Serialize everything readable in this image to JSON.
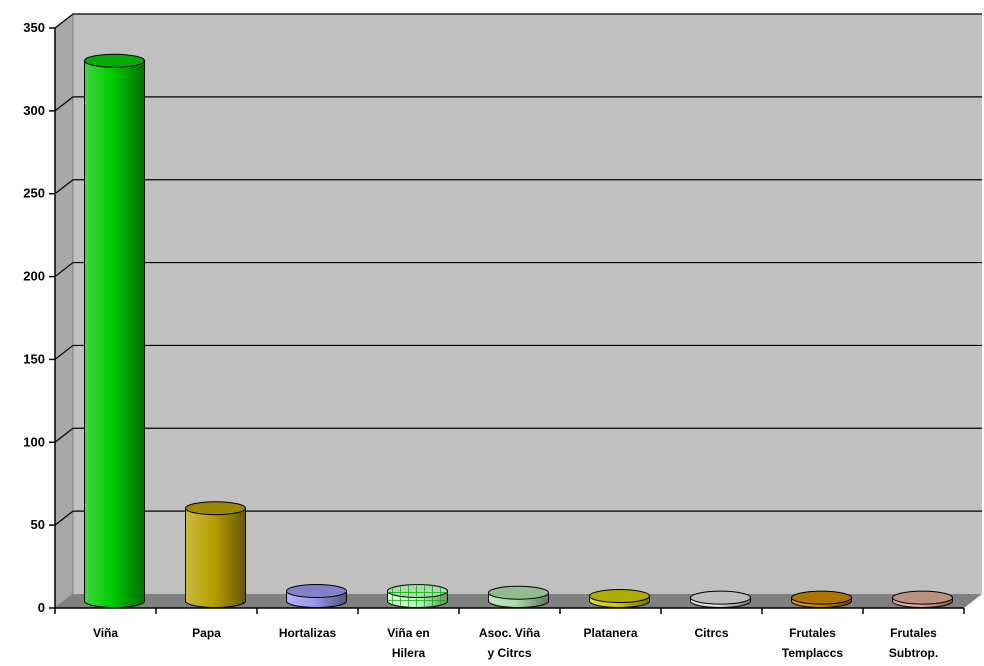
{
  "chart_data": {
    "type": "bar",
    "style": "3d-cylinder",
    "title": "",
    "xlabel": "",
    "ylabel": "",
    "ylim": [
      0,
      350
    ],
    "yticks": [
      0,
      50,
      100,
      150,
      200,
      250,
      300,
      350
    ],
    "grid": true,
    "legend": "none",
    "categories": [
      [
        "Viña"
      ],
      [
        "Papa"
      ],
      [
        "Hortalizas"
      ],
      [
        "Viña en",
        "Hilera"
      ],
      [
        "Asoc. Viña",
        "y Citrcs"
      ],
      [
        "Platanera"
      ],
      [
        "Citrcs"
      ],
      [
        "Frutales",
        "Templaccs"
      ],
      [
        "Frutales",
        "Subtrop."
      ]
    ],
    "values": [
      326,
      56,
      6,
      6,
      5,
      3,
      2,
      2,
      2
    ],
    "colors": [
      "#00cc00",
      "#b8a000",
      "#9999ee",
      "#ccffcc",
      "#aaddaa",
      "#cccc00",
      "#dddddd",
      "#cc8800",
      "#ddaa99"
    ],
    "patterns": [
      "",
      "",
      "",
      "grid",
      "",
      "",
      "",
      "",
      ""
    ],
    "plot_background": "#c0c0c0",
    "floor_color": "#808080"
  }
}
